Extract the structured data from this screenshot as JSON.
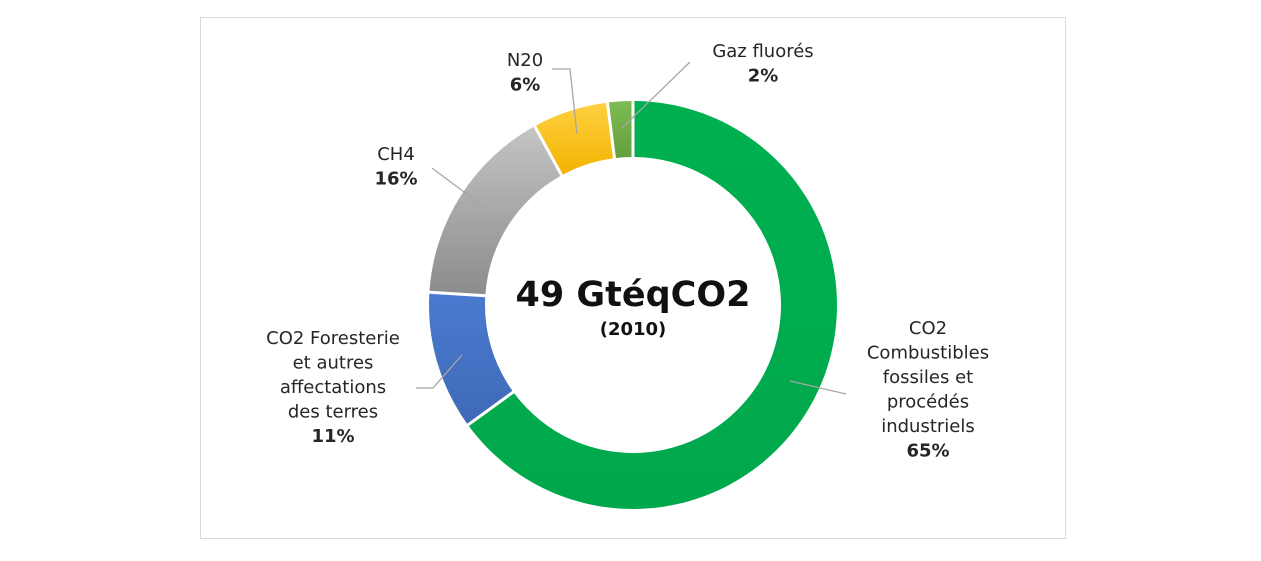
{
  "chart_data": {
    "type": "pie",
    "style": "donut",
    "center_label": "49 GtéqCO2",
    "center_sublabel": "(2010)",
    "slices": [
      {
        "key": "co2-fossil",
        "label_lines": [
          "CO2",
          "Combustibles",
          "fossiles et",
          "procédés",
          "industriels"
        ],
        "value": 65,
        "value_label": "65%",
        "color": "#00b050"
      },
      {
        "key": "co2-forestry",
        "label_lines": [
          "CO2 Foresterie",
          "et autres",
          "affectations",
          "des terres"
        ],
        "value": 11,
        "value_label": "11%",
        "color": "#4472c4"
      },
      {
        "key": "ch4",
        "label_lines": [
          "CH4"
        ],
        "value": 16,
        "value_label": "16%",
        "color": "#a5a5a5"
      },
      {
        "key": "n2o",
        "label_lines": [
          "N20"
        ],
        "value": 6,
        "value_label": "6%",
        "color": "#ffc000"
      },
      {
        "key": "fluorinated",
        "label_lines": [
          "Gaz fluorés"
        ],
        "value": 2,
        "value_label": "2%",
        "color": "#70ad47"
      }
    ],
    "legend": "none",
    "data_labels": "outside-with-leader-lines"
  }
}
